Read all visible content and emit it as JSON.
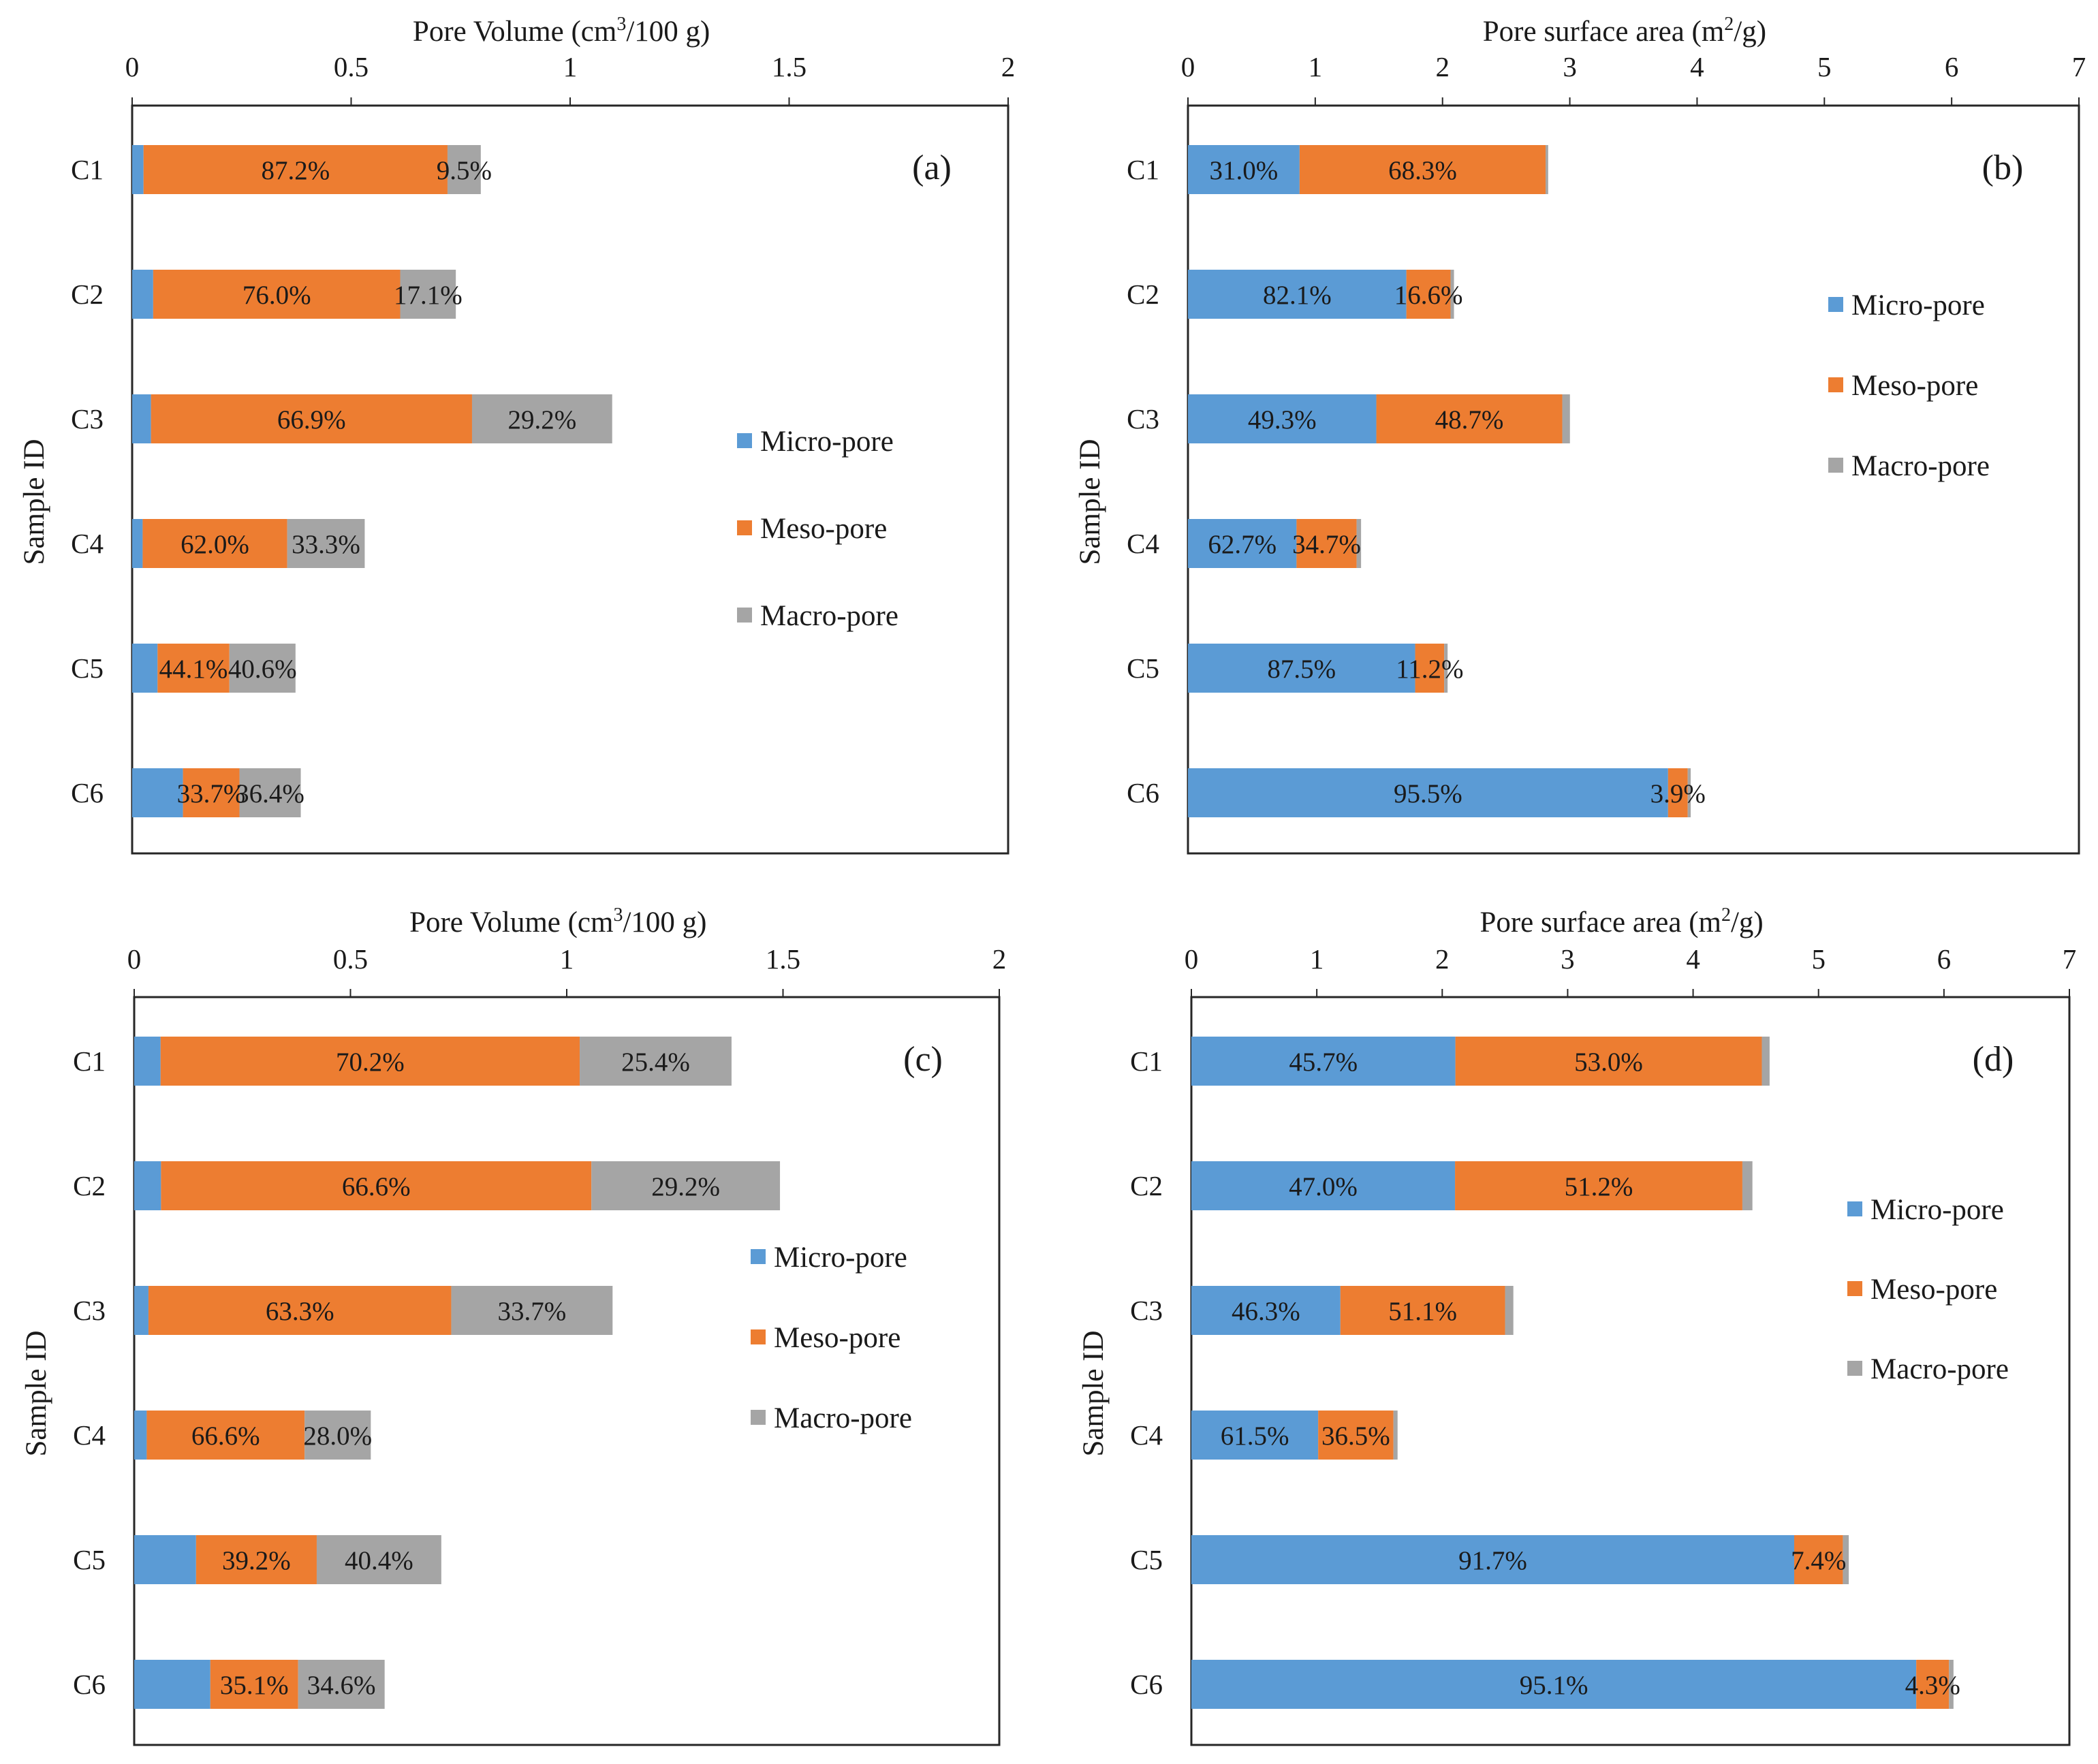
{
  "colors": {
    "micro": "#5b9bd5",
    "meso": "#ed7d31",
    "macro": "#a5a5a5",
    "frame": "#262626",
    "text": "#1a1a1a"
  },
  "chart_data": [
    {
      "type": "bar",
      "orientation": "horizontal",
      "stacked": true,
      "panel_label": "(a)",
      "title": "",
      "xlabel_parts": [
        "Pore Volume (cm",
        "3",
        "/100  g)"
      ],
      "ylabel": "Sample ID",
      "xlim": [
        0,
        2
      ],
      "xticks": [
        0,
        0.5,
        1,
        1.5,
        2
      ],
      "xtick_labels": [
        "0",
        "0.5",
        "1",
        "1.5",
        "2"
      ],
      "categories": [
        "C1",
        "C2",
        "C3",
        "C4",
        "C5",
        "C6"
      ],
      "legend": "center-right",
      "series": [
        {
          "name": "Micro-pore",
          "key": "micro",
          "values": [
            0.026,
            0.048,
            0.043,
            0.024,
            0.058,
            0.116
          ]
        },
        {
          "name": "Meso-pore",
          "key": "meso",
          "values": [
            0.694,
            0.564,
            0.733,
            0.33,
            0.164,
            0.129
          ]
        },
        {
          "name": "Macro-pore",
          "key": "macro",
          "values": [
            0.076,
            0.127,
            0.32,
            0.177,
            0.151,
            0.14
          ]
        }
      ],
      "labels": [
        [
          "",
          "87.2%",
          "9.5%"
        ],
        [
          "",
          "76.0%",
          "17.1%"
        ],
        [
          "",
          "66.9%",
          "29.2%"
        ],
        [
          "",
          "62.0%",
          "33.3%"
        ],
        [
          "",
          "44.1%",
          "40.6%"
        ],
        [
          "",
          "33.7%",
          "36.4%"
        ]
      ]
    },
    {
      "type": "bar",
      "orientation": "horizontal",
      "stacked": true,
      "panel_label": "(b)",
      "title": "",
      "xlabel_parts": [
        "Pore surface area (m",
        "2",
        "/g)"
      ],
      "ylabel": "Sample ID",
      "xlim": [
        0,
        7
      ],
      "xticks": [
        0,
        1,
        2,
        3,
        4,
        5,
        6,
        7
      ],
      "xtick_labels": [
        "0",
        "1",
        "2",
        "3",
        "4",
        "5",
        "6",
        "7"
      ],
      "categories": [
        "C1",
        "C2",
        "C3",
        "C4",
        "C5",
        "C6"
      ],
      "legend": "upper-right",
      "series": [
        {
          "name": "Micro-pore",
          "key": "micro",
          "values": [
            0.877,
            1.716,
            1.48,
            0.853,
            1.785,
            3.772
          ]
        },
        {
          "name": "Meso-pore",
          "key": "meso",
          "values": [
            1.933,
            0.347,
            1.461,
            0.472,
            0.228,
            0.154
          ]
        },
        {
          "name": "Macro-pore",
          "key": "macro",
          "values": [
            0.02,
            0.027,
            0.06,
            0.035,
            0.027,
            0.024
          ]
        }
      ],
      "labels": [
        [
          "31.0%",
          "68.3%",
          ""
        ],
        [
          "82.1%",
          "16.6%",
          ""
        ],
        [
          "49.3%",
          "48.7%",
          ""
        ],
        [
          "62.7%",
          "34.7%",
          ""
        ],
        [
          "87.5%",
          "11.2%",
          ""
        ],
        [
          "95.5%",
          "3.9%",
          ""
        ]
      ]
    },
    {
      "type": "bar",
      "orientation": "horizontal",
      "stacked": true,
      "panel_label": "(c)",
      "title": "",
      "xlabel_parts": [
        "Pore Volume (cm",
        "3",
        "/100  g)"
      ],
      "ylabel": "Sample ID",
      "xlim": [
        0,
        2
      ],
      "xticks": [
        0,
        0.5,
        1,
        1.5,
        2
      ],
      "xtick_labels": [
        "0",
        "0.5",
        "1",
        "1.5",
        "2"
      ],
      "categories": [
        "C1",
        "C2",
        "C3",
        "C4",
        "C5",
        "C6"
      ],
      "legend": "center-right",
      "series": [
        {
          "name": "Micro-pore",
          "key": "micro",
          "values": [
            0.061,
            0.062,
            0.033,
            0.029,
            0.143,
            0.176
          ]
        },
        {
          "name": "Meso-pore",
          "key": "meso",
          "values": [
            0.969,
            0.995,
            0.7,
            0.365,
            0.279,
            0.203
          ]
        },
        {
          "name": "Macro-pore",
          "key": "macro",
          "values": [
            0.351,
            0.436,
            0.373,
            0.153,
            0.288,
            0.2
          ]
        }
      ],
      "labels": [
        [
          "",
          "70.2%",
          "25.4%"
        ],
        [
          "",
          "66.6%",
          "29.2%"
        ],
        [
          "",
          "63.3%",
          "33.7%"
        ],
        [
          "",
          "66.6%",
          "28.0%"
        ],
        [
          "",
          "39.2%",
          "40.4%"
        ],
        [
          "",
          "35.1%",
          "34.6%"
        ]
      ]
    },
    {
      "type": "bar",
      "orientation": "horizontal",
      "stacked": true,
      "panel_label": "(d)",
      "title": "",
      "xlabel_parts": [
        "Pore surface area (m",
        "2",
        "/g)"
      ],
      "ylabel": "Sample ID",
      "xlim": [
        0,
        7
      ],
      "xticks": [
        0,
        1,
        2,
        3,
        4,
        5,
        6,
        7
      ],
      "xtick_labels": [
        "0",
        "1",
        "2",
        "3",
        "4",
        "5",
        "6",
        "7"
      ],
      "categories": [
        "C1",
        "C2",
        "C3",
        "C4",
        "C5",
        "C6"
      ],
      "legend": "upper-right",
      "series": [
        {
          "name": "Micro-pore",
          "key": "micro",
          "values": [
            2.105,
            2.102,
            1.188,
            1.011,
            4.806,
            5.779
          ]
        },
        {
          "name": "Meso-pore",
          "key": "meso",
          "values": [
            2.443,
            2.291,
            1.313,
            0.6,
            0.388,
            0.261
          ]
        },
        {
          "name": "Macro-pore",
          "key": "macro",
          "values": [
            0.062,
            0.08,
            0.066,
            0.033,
            0.047,
            0.036
          ]
        }
      ],
      "labels": [
        [
          "45.7%",
          "53.0%",
          ""
        ],
        [
          "47.0%",
          "51.2%",
          ""
        ],
        [
          "46.3%",
          "51.1%",
          ""
        ],
        [
          "61.5%",
          "36.5%",
          ""
        ],
        [
          "91.7%",
          "7.4%",
          ""
        ],
        [
          "95.1%",
          "4.3%",
          ""
        ]
      ]
    }
  ]
}
